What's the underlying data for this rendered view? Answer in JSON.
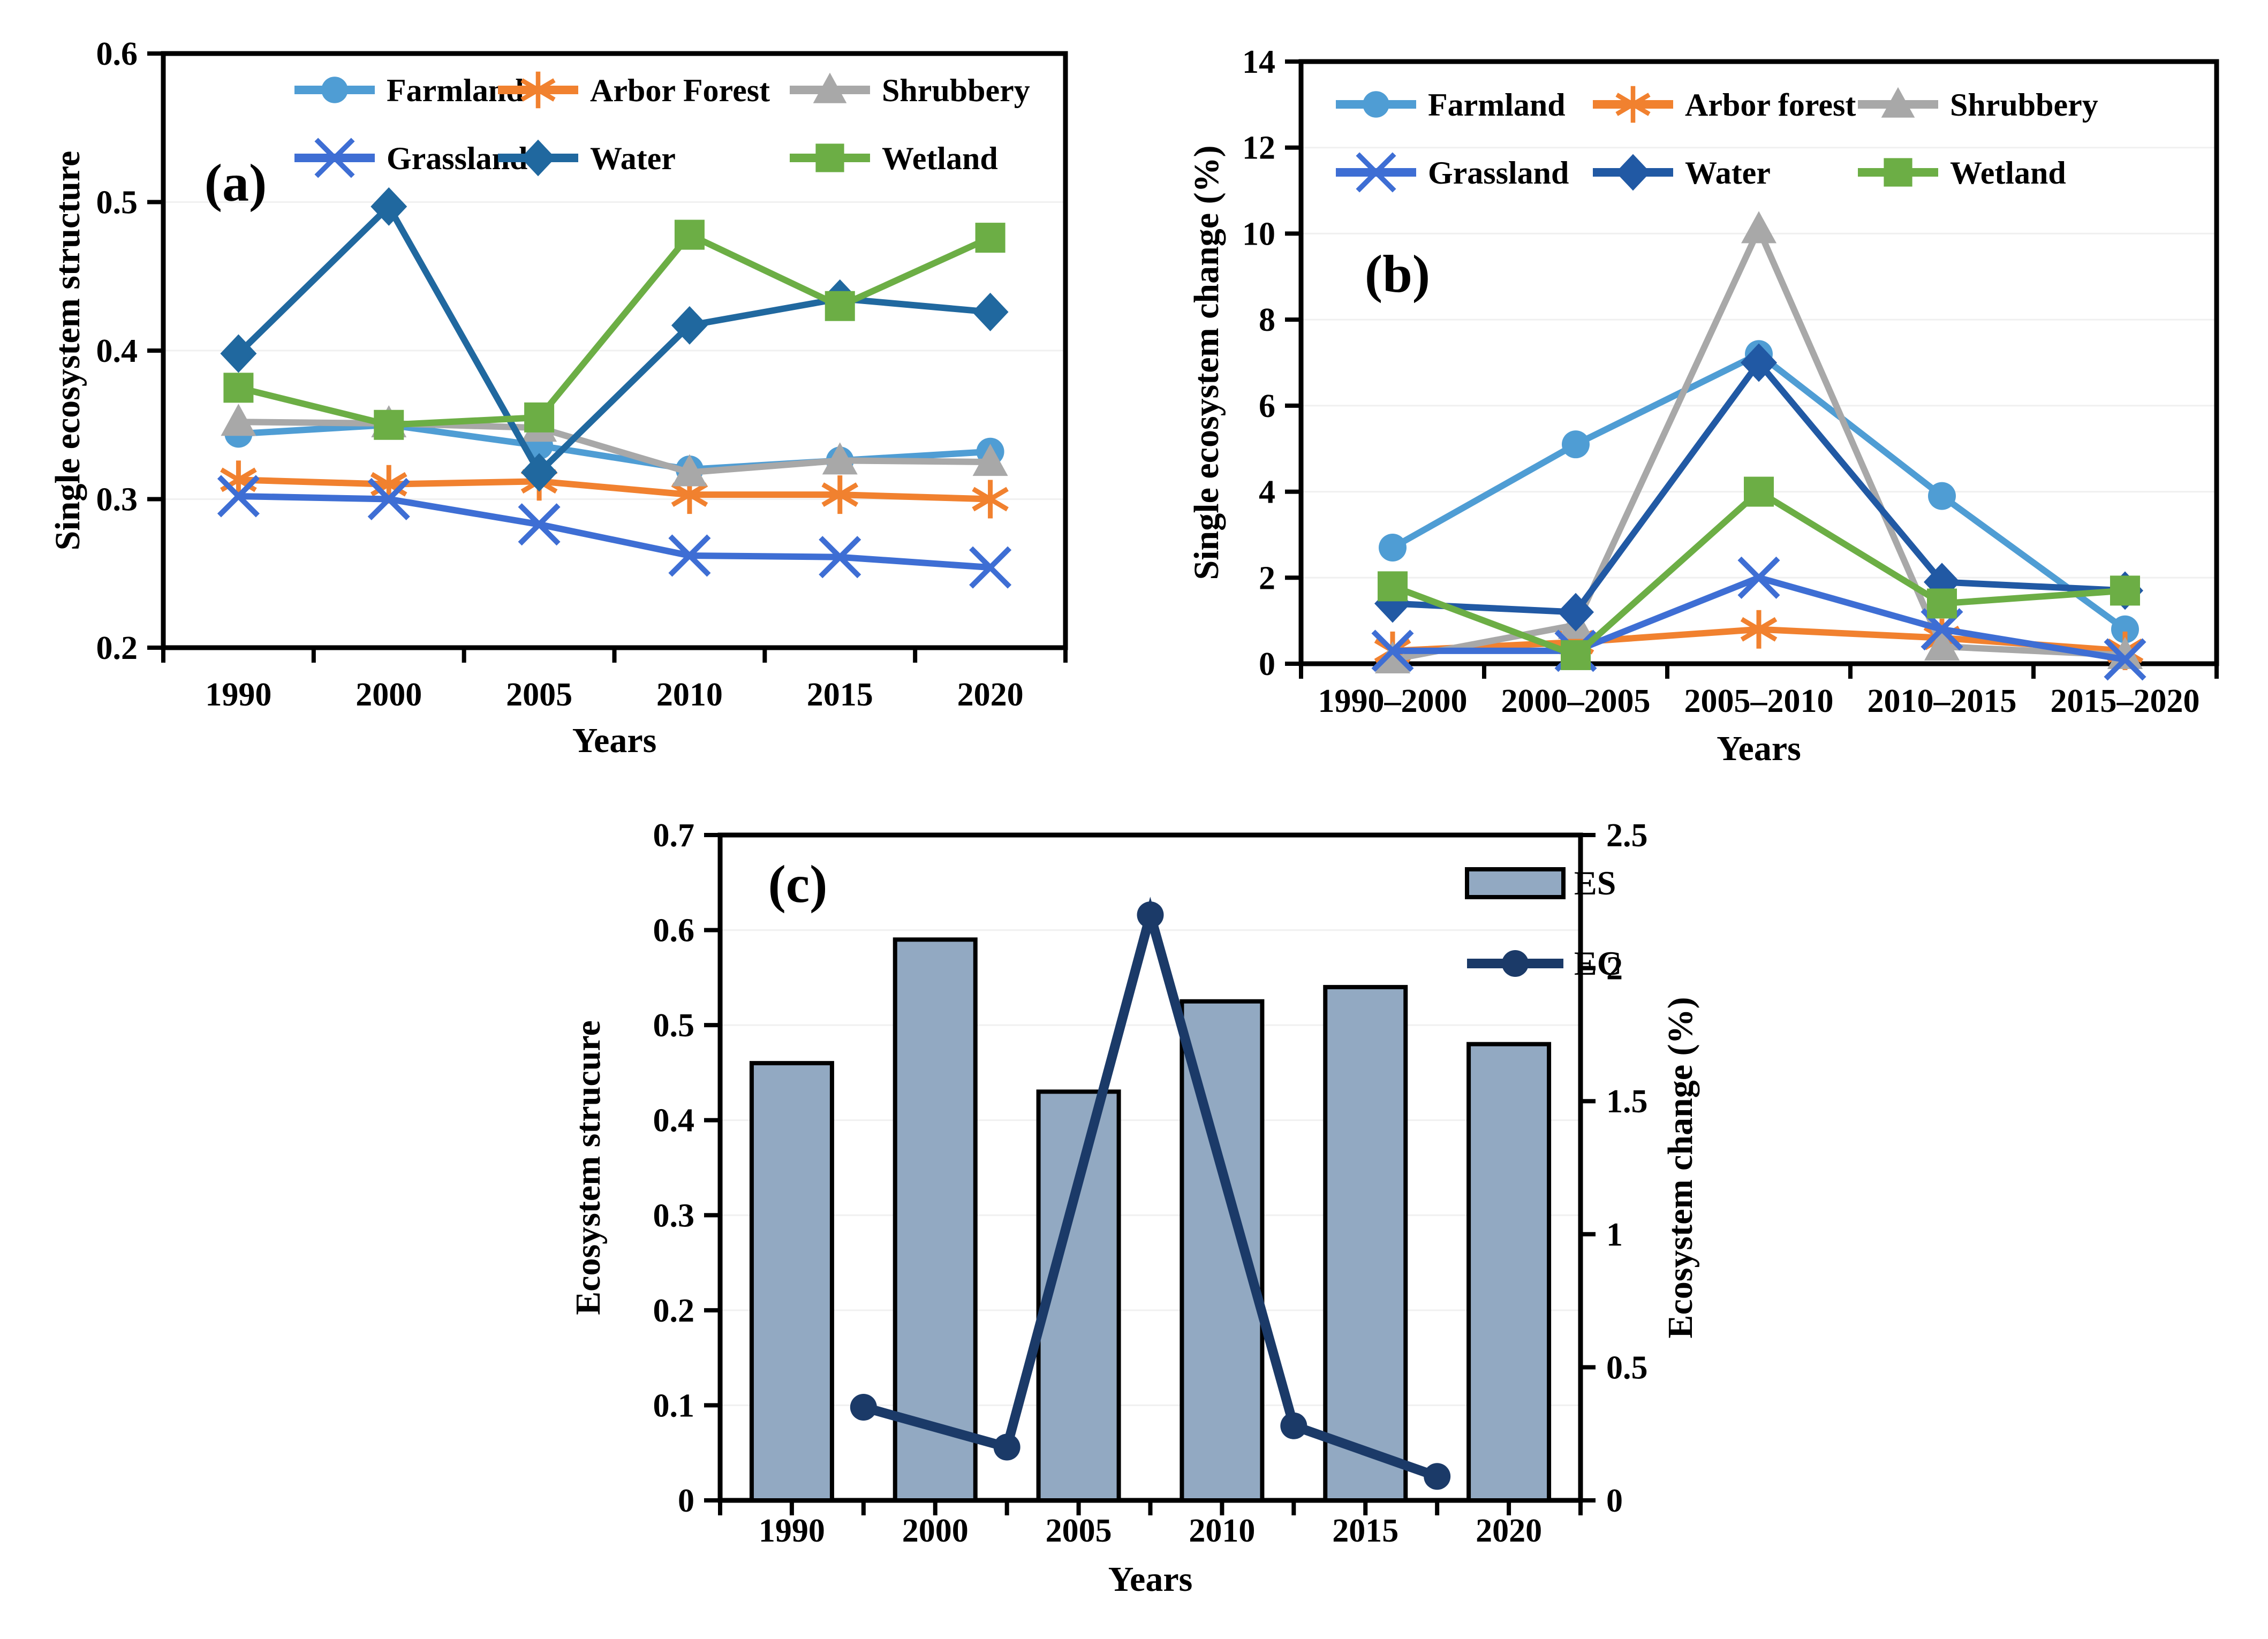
{
  "figure": {
    "background": "#ffffff",
    "panels": [
      "(a)",
      "(b)",
      "(c)"
    ]
  },
  "colors": {
    "axis": "#000000",
    "gridline": "#f0f0f0",
    "farmland": "#4F9DD4",
    "arbor": "#F1812F",
    "shrubbery": "#A8A8A8",
    "grassland": "#3E6ED4",
    "water_a": "#20689F",
    "water_b": "#2159A4",
    "wetland": "#6CAE45",
    "es_fill": "#92A9C2",
    "es_border": "#000000",
    "ec_line": "#1B3A68"
  },
  "chart_data": [
    {
      "id": "a",
      "type": "line",
      "panel_label": "(a)",
      "xlabel": "Years",
      "ylabel": "Single ecosystem structure",
      "categories": [
        "1990",
        "2000",
        "2005",
        "2010",
        "2015",
        "2020"
      ],
      "ylim": [
        0.2,
        0.6
      ],
      "yticks": [
        "0.2",
        "0.3",
        "0.4",
        "0.5",
        "0.6"
      ],
      "ytick_values": [
        0.2,
        0.3,
        0.4,
        0.5,
        0.6
      ],
      "grid": false,
      "legend_position": "top-inside",
      "series": [
        {
          "name": "Farmland",
          "marker": "circle",
          "color": "#4F9DD4",
          "values": [
            0.344,
            0.35,
            0.336,
            0.32,
            0.326,
            0.332
          ]
        },
        {
          "name": "Arbor Forest",
          "marker": "asterisk",
          "color": "#F1812F",
          "values": [
            0.313,
            0.31,
            0.312,
            0.303,
            0.303,
            0.3
          ]
        },
        {
          "name": "Shrubbery",
          "marker": "triangle",
          "color": "#A8A8A8",
          "values": [
            0.352,
            0.351,
            0.348,
            0.318,
            0.326,
            0.325
          ]
        },
        {
          "name": "Grassland",
          "marker": "x",
          "color": "#3E6ED4",
          "values": [
            0.302,
            0.3,
            0.283,
            0.262,
            0.261,
            0.254
          ]
        },
        {
          "name": "Water",
          "marker": "diamond",
          "color": "#20689F",
          "values": [
            0.398,
            0.497,
            0.318,
            0.417,
            0.435,
            0.426
          ]
        },
        {
          "name": "Wetland",
          "marker": "square",
          "color": "#6CAE45",
          "values": [
            0.375,
            0.35,
            0.355,
            0.478,
            0.43,
            0.476
          ]
        }
      ]
    },
    {
      "id": "b",
      "type": "line",
      "panel_label": "(b)",
      "xlabel": "Years",
      "ylabel": "Single ecosystem change (%)",
      "categories": [
        "1990–2000",
        "2000–2005",
        "2005–2010",
        "2010–2015",
        "2015–2020"
      ],
      "ylim": [
        0,
        14
      ],
      "yticks": [
        "0",
        "2",
        "4",
        "6",
        "8",
        "10",
        "12",
        "14"
      ],
      "ytick_values": [
        0,
        2,
        4,
        6,
        8,
        10,
        12,
        14
      ],
      "grid": false,
      "legend_position": "top-inside",
      "series": [
        {
          "name": "Farmland",
          "marker": "circle",
          "color": "#4F9DD4",
          "values": [
            2.7,
            5.1,
            7.2,
            3.9,
            0.8
          ]
        },
        {
          "name": "Arbor forest",
          "marker": "asterisk",
          "color": "#F1812F",
          "values": [
            0.3,
            0.5,
            0.8,
            0.6,
            0.3
          ]
        },
        {
          "name": "Shrubbery",
          "marker": "triangle",
          "color": "#A8A8A8",
          "values": [
            0.1,
            0.9,
            10.1,
            0.4,
            0.2
          ]
        },
        {
          "name": "Grassland",
          "marker": "x",
          "color": "#3E6ED4",
          "values": [
            0.3,
            0.3,
            2.0,
            0.8,
            0.1
          ]
        },
        {
          "name": "Water",
          "marker": "diamond",
          "color": "#2159A4",
          "values": [
            1.4,
            1.2,
            7.0,
            1.9,
            1.7
          ]
        },
        {
          "name": "Wetland",
          "marker": "square",
          "color": "#6CAE45",
          "values": [
            1.8,
            0.2,
            4.0,
            1.4,
            1.7
          ]
        }
      ]
    },
    {
      "id": "c",
      "type": "bar+line",
      "panel_label": "(c)",
      "xlabel": "Years",
      "ylabel_left": "Ecosystem strucure",
      "ylabel_right": "Ecosystem change (%)",
      "categories": [
        "1990",
        "2000",
        "2005",
        "2010",
        "2015",
        "2020"
      ],
      "ylim_left": [
        0,
        0.7
      ],
      "yticks_left": [
        "0",
        "0.1",
        "0.2",
        "0.3",
        "0.4",
        "0.5",
        "0.6",
        "0.7"
      ],
      "ytick_values_left": [
        0,
        0.1,
        0.2,
        0.3,
        0.4,
        0.5,
        0.6,
        0.7
      ],
      "ylim_right": [
        0,
        2.5
      ],
      "yticks_right": [
        "0",
        "0.5",
        "1",
        "1.5",
        "2",
        "2.5"
      ],
      "ytick_values_right": [
        0,
        0.5,
        1,
        1.5,
        2,
        2.5
      ],
      "legend": [
        "ES",
        "EC"
      ],
      "bars": {
        "name": "ES",
        "fill": "#92A9C2",
        "border": "#000000",
        "values": [
          0.46,
          0.59,
          0.43,
          0.525,
          0.54,
          0.48
        ]
      },
      "line": {
        "name": "EC",
        "color": "#1B3A68",
        "marker": "circle",
        "note_positions": "points lie midway between year ticks (period midpoints)",
        "values": [
          0.35,
          0.2,
          2.2,
          0.28,
          0.09
        ]
      }
    }
  ]
}
